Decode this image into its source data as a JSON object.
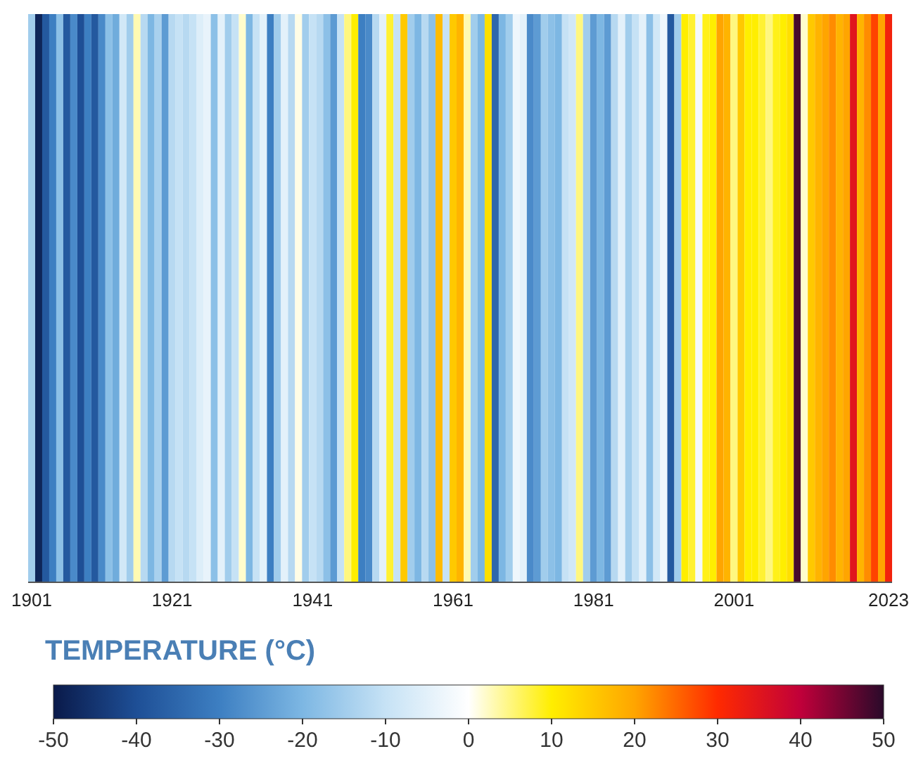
{
  "chart_data": {
    "type": "heatmap",
    "categories": [
      "1901",
      null,
      null,
      null,
      null,
      null,
      null,
      null,
      null,
      null,
      null,
      null,
      null,
      null,
      null,
      null,
      null,
      null,
      null,
      null,
      "1921",
      null,
      null,
      null,
      null,
      null,
      null,
      null,
      null,
      null,
      null,
      null,
      null,
      null,
      null,
      null,
      null,
      null,
      null,
      null,
      "1941",
      null,
      null,
      null,
      null,
      null,
      null,
      null,
      null,
      null,
      null,
      null,
      null,
      null,
      null,
      null,
      null,
      null,
      null,
      null,
      "1961",
      null,
      null,
      null,
      null,
      null,
      null,
      null,
      null,
      null,
      null,
      null,
      null,
      null,
      null,
      null,
      null,
      null,
      null,
      null,
      "1981",
      null,
      null,
      null,
      null,
      null,
      null,
      null,
      null,
      null,
      null,
      null,
      null,
      null,
      null,
      null,
      null,
      null,
      null,
      null,
      "2001",
      null,
      null,
      null,
      null,
      null,
      null,
      null,
      null,
      null,
      null,
      null,
      null,
      null,
      null,
      null,
      null,
      null,
      null,
      null,
      null,
      null,
      "2023"
    ],
    "y_categories": [
      null
    ],
    "cells": [
      [
        -15,
        -48,
        -38,
        -30,
        -18,
        -38,
        -28,
        -40,
        -30,
        -38,
        -28,
        -18,
        -22,
        -8,
        -15,
        3,
        -12,
        -20,
        -14,
        -25,
        -12,
        -10,
        -12,
        -10,
        -6,
        -4,
        -18,
        -5,
        -15,
        -10,
        2,
        -20,
        -10,
        -5,
        -30,
        -15,
        -5,
        -12,
        1,
        -15,
        -10,
        -12,
        -18,
        -25,
        -10,
        5,
        10,
        -30,
        -28,
        -12,
        -5,
        8,
        -10,
        15,
        -15,
        -20,
        -12,
        -18,
        17,
        -10,
        15,
        18,
        3,
        -15,
        -20,
        12,
        -35,
        -20,
        -15,
        -3,
        -5,
        -28,
        -25,
        -15,
        -18,
        -20,
        -10,
        -8,
        5,
        -15,
        -25,
        -20,
        -25,
        -12,
        -5,
        -15,
        -10,
        -5,
        -18,
        -8,
        -3,
        -38,
        -15,
        10,
        8,
        -2,
        9,
        10,
        20,
        18,
        5,
        15,
        10,
        10,
        8,
        5,
        9,
        10,
        12,
        48,
        2,
        15,
        18,
        20,
        22,
        18,
        20,
        35,
        18,
        22,
        28,
        20,
        32
      ]
    ],
    "clabel": "TEMPERATURE (°C)",
    "clim": [
      -50,
      50
    ],
    "cticks": [
      -50,
      -40,
      -30,
      -20,
      -10,
      0,
      10,
      20,
      30,
      40,
      50
    ]
  }
}
